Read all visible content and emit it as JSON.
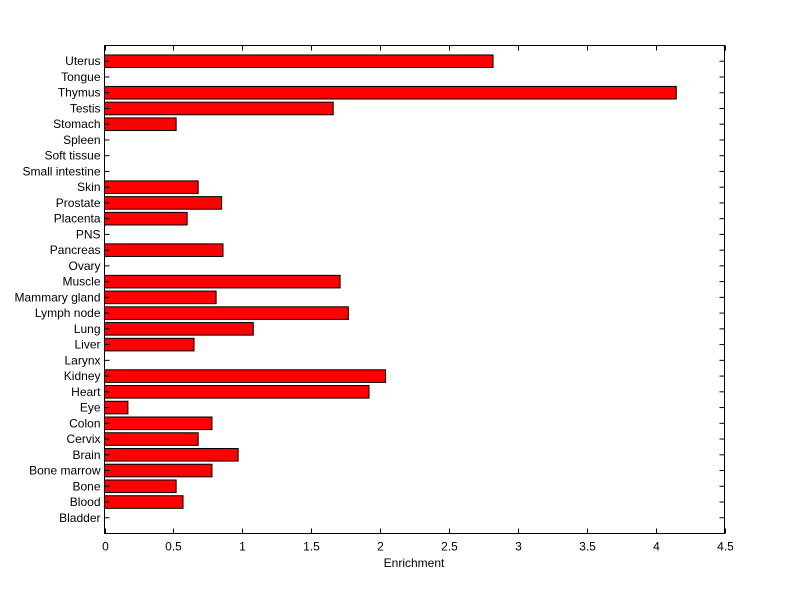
{
  "chart_data": {
    "type": "bar",
    "orientation": "horizontal",
    "title": "",
    "xlabel": "Enrichment",
    "ylabel": "",
    "xlim": [
      0,
      4.5
    ],
    "xticks": [
      "0",
      "0.5",
      "1",
      "1.5",
      "2",
      "2.5",
      "3",
      "3.5",
      "4",
      "4.5"
    ],
    "bar_color": "#ff0000",
    "grid": false,
    "categories": [
      "Uterus",
      "Tongue",
      "Thymus",
      "Testis",
      "Stomach",
      "Spleen",
      "Soft tissue",
      "Small intestine",
      "Skin",
      "Prostate",
      "Placenta",
      "PNS",
      "Pancreas",
      "Ovary",
      "Muscle",
      "Mammary gland",
      "Lymph node",
      "Lung",
      "Liver",
      "Larynx",
      "Kidney",
      "Heart",
      "Eye",
      "Colon",
      "Cervix",
      "Brain",
      "Bone marrow",
      "Bone",
      "Blood",
      "Bladder"
    ],
    "values": [
      2.82,
      0,
      4.15,
      1.66,
      0.52,
      0,
      0,
      0,
      0.68,
      0.85,
      0.6,
      0,
      0.86,
      0,
      1.71,
      0.81,
      1.77,
      1.08,
      0.65,
      0,
      2.04,
      1.92,
      0.17,
      0.78,
      0.68,
      0.97,
      0.78,
      0.52,
      0.57,
      0
    ]
  }
}
